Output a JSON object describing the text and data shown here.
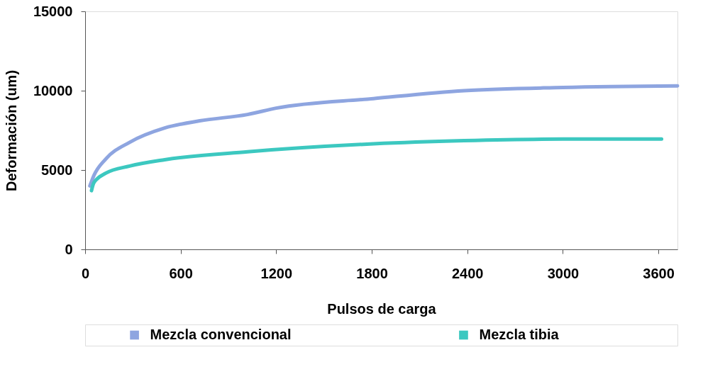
{
  "chart_data": {
    "type": "line",
    "xlabel": "Pulsos de carga",
    "ylabel": "Deformación (um)",
    "xlim": [
      0,
      3720
    ],
    "xticks": [
      0,
      600,
      1200,
      1800,
      2400,
      3000,
      3600
    ],
    "ylim": [
      0,
      15000
    ],
    "yticks": [
      0,
      5000,
      10000,
      15000
    ],
    "grid": false,
    "legend": "bottom",
    "marker": "none",
    "line_style": "solid",
    "series": [
      {
        "name": "Mezcla convencional",
        "color": "#8ea5e0",
        "x": [
          30,
          55,
          130,
          280,
          500,
          720,
          1020,
          1200,
          1810,
          2380,
          3000,
          3720
        ],
        "values": [
          4000,
          4650,
          5700,
          6750,
          7650,
          8100,
          8500,
          8900,
          9500,
          10000,
          10200,
          10300
        ]
      },
      {
        "name": "Mezcla tibia",
        "color": "#3cc8c0",
        "x": [
          40,
          55,
          130,
          280,
          500,
          1020,
          1810,
          2380,
          3000,
          3620
        ],
        "values": [
          3700,
          4200,
          4800,
          5250,
          5650,
          6150,
          6650,
          6850,
          6950,
          6950
        ]
      }
    ]
  }
}
